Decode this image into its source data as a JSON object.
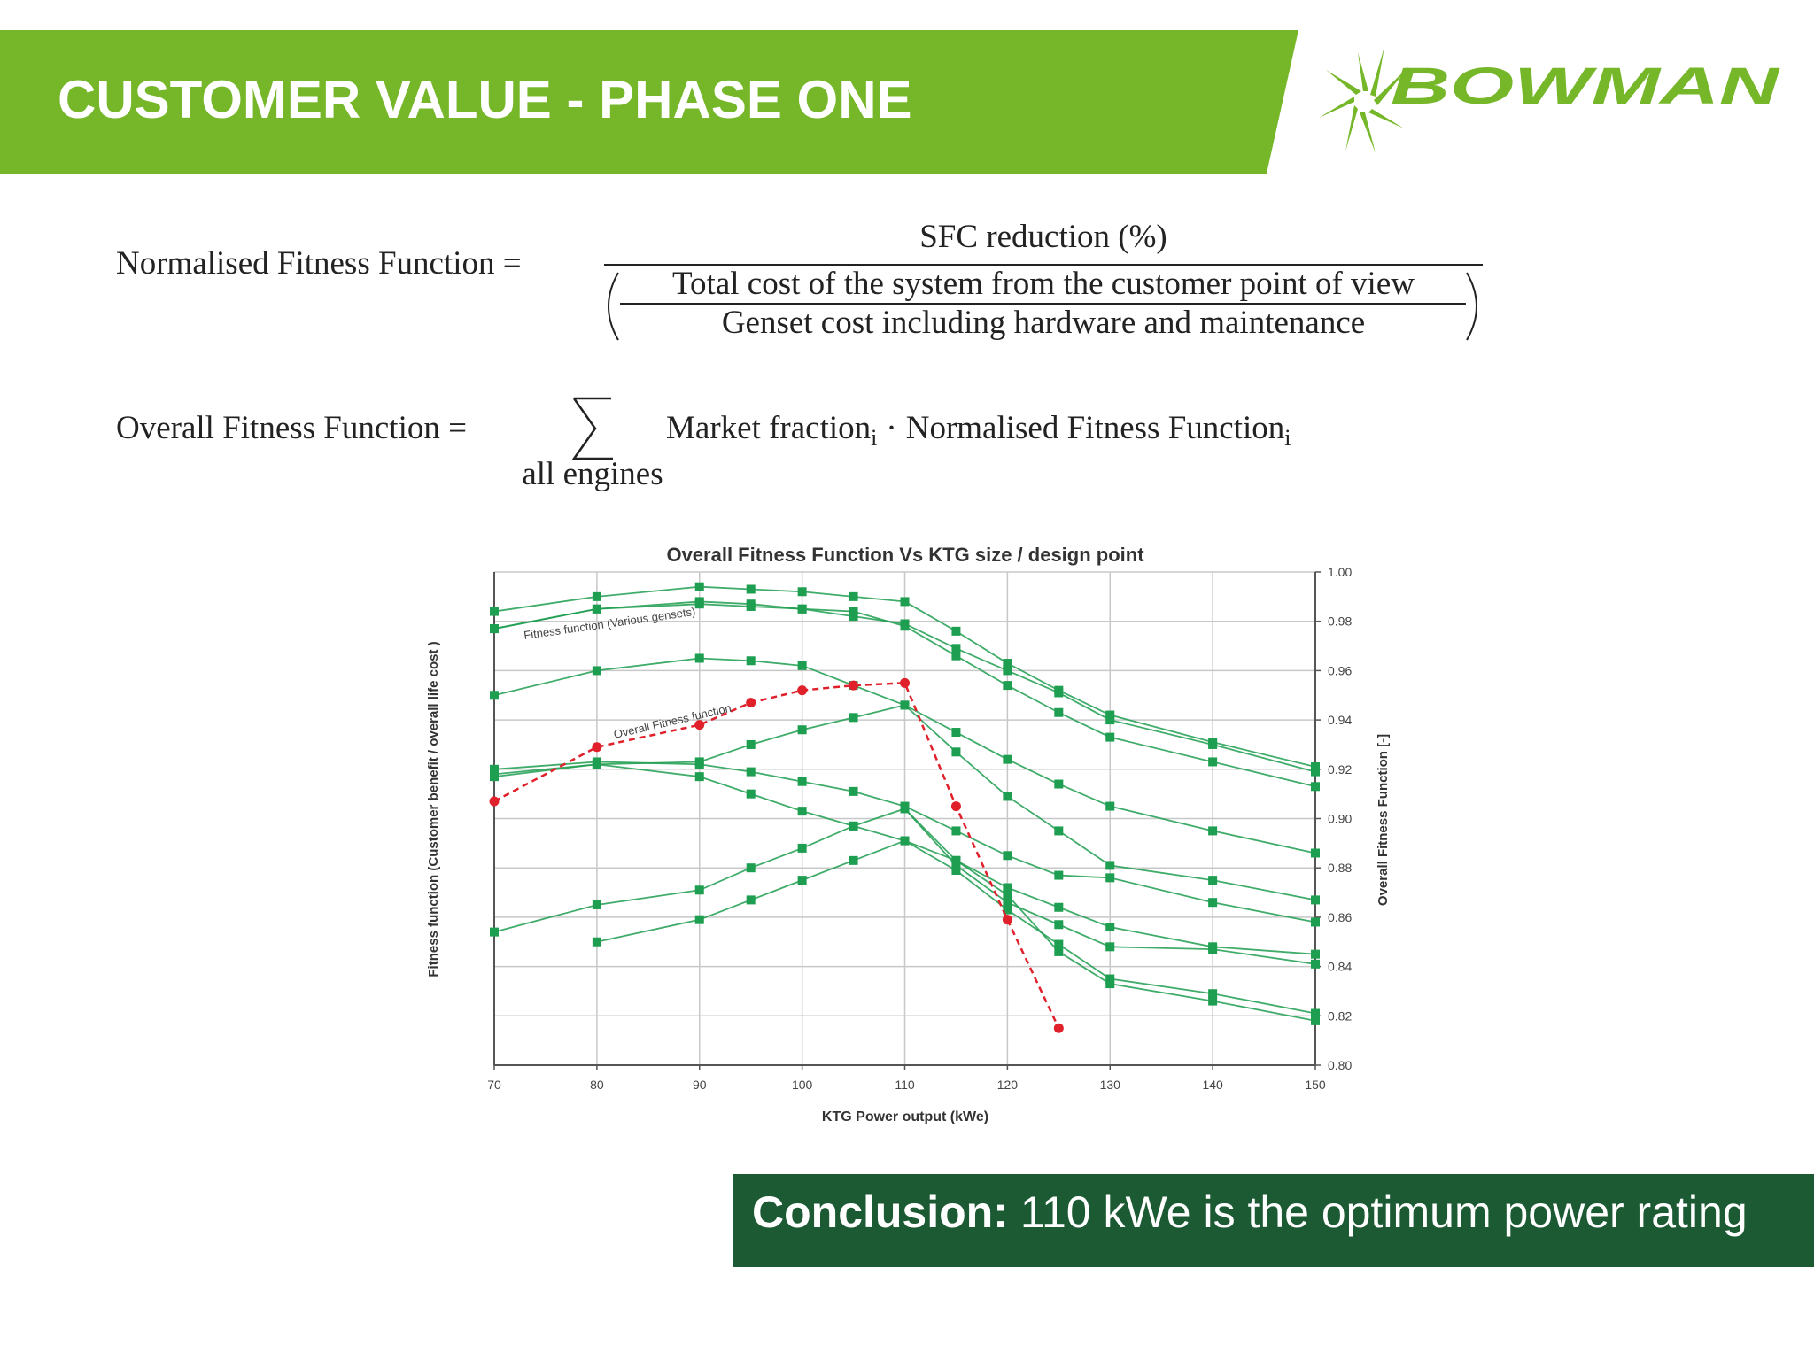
{
  "header": {
    "title": "CUSTOMER VALUE - PHASE ONE",
    "logo": "BOWMAN"
  },
  "formula1": {
    "lhs": "Normalised Fitness Function =",
    "numerator": "SFC reduction (%)",
    "inner_numerator": "Total cost of the system from the customer point of view",
    "inner_denominator": "Genset cost including hardware and maintenance"
  },
  "formula2": {
    "lhs": "Overall Fitness Function =",
    "sum_under": "all engines",
    "term1": "Market fraction",
    "sub1": "i",
    "dot": "·",
    "term2": "Normalised Fitness Function",
    "sub2": "i"
  },
  "chart_data": {
    "type": "line",
    "title": "Overall Fitness Function Vs KTG size / design point",
    "xlabel": "KTG Power output (kWe)",
    "ylabel": "Fitness function (Customer benefit / overall life cost )",
    "y2label": "Overall Fitness Function [-]",
    "x": [
      70,
      80,
      90,
      95,
      100,
      105,
      110,
      115,
      120,
      125,
      130,
      140,
      150
    ],
    "xlim": [
      70,
      150
    ],
    "xticks": [
      70,
      80,
      90,
      100,
      110,
      120,
      130,
      140,
      150
    ],
    "y2lim": [
      0.8,
      1
    ],
    "y2ticks": [
      {
        "value": 0.8,
        "label": "0.80"
      },
      0.82,
      0.84,
      0.86,
      0.88,
      {
        "value": 0.9,
        "label": "0.90"
      },
      0.92,
      0.94,
      0.96,
      0.98,
      {
        "value": 1,
        "label": "1.00"
      }
    ],
    "grid": true,
    "annotations": [
      {
        "text": "Fitness function (Various gensets)"
      },
      {
        "text": "Overall Fitness function"
      }
    ],
    "series": [
      {
        "color": "#1e9e50",
        "marker": "square",
        "axis": "y2",
        "values": [
          0.984,
          0.99,
          0.994,
          0.993,
          0.992,
          0.99,
          0.988,
          0.976,
          0.963,
          0.952,
          0.942,
          0.931,
          0.921
        ]
      },
      {
        "color": "#1e9e50",
        "marker": "square",
        "axis": "y2",
        "values": [
          0.977,
          0.985,
          0.988,
          0.987,
          0.985,
          0.982,
          0.979,
          0.969,
          0.96,
          0.951,
          0.94,
          0.93,
          0.919
        ]
      },
      {
        "color": "#1e9e50",
        "marker": "square",
        "axis": "y2",
        "values": [
          0.977,
          0.985,
          0.987,
          0.986,
          0.985,
          0.984,
          0.978,
          0.966,
          0.954,
          0.943,
          0.933,
          0.923,
          0.913
        ]
      },
      {
        "color": "#1e9e50",
        "marker": "square",
        "axis": "y2",
        "values": [
          0.95,
          0.96,
          0.965,
          0.964,
          0.962,
          0.954,
          0.946,
          0.935,
          0.924,
          0.914,
          0.905,
          0.895,
          0.886
        ]
      },
      {
        "color": "#1e9e50",
        "marker": "square",
        "axis": "y2",
        "values": [
          0.918,
          0.922,
          0.923,
          0.93,
          0.936,
          0.941,
          0.946,
          0.927,
          0.909,
          0.895,
          0.881,
          0.875,
          0.867
        ]
      },
      {
        "color": "#1e9e50",
        "marker": "square",
        "axis": "y2",
        "values": [
          0.92,
          0.923,
          0.922,
          0.919,
          0.915,
          0.911,
          0.905,
          0.895,
          0.885,
          0.877,
          0.876,
          0.866,
          0.858
        ]
      },
      {
        "color": "#1e9e50",
        "marker": "square",
        "axis": "y2",
        "values": [
          0.917,
          0.922,
          0.917,
          0.91,
          0.903,
          0.897,
          0.891,
          0.883,
          0.872,
          0.864,
          0.856,
          0.848,
          0.845
        ]
      },
      {
        "color": "#1e9e50",
        "marker": "square",
        "axis": "y2",
        "values": [
          0.854,
          0.865,
          0.871,
          0.88,
          0.888,
          0.897,
          0.904,
          0.881,
          0.866,
          0.857,
          0.848,
          0.847,
          0.841
        ]
      },
      {
        "color": "#1e9e50",
        "marker": "square",
        "axis": "y2",
        "values": [
          null,
          0.85,
          0.859,
          0.867,
          0.875,
          0.883,
          0.891,
          0.879,
          0.863,
          0.849,
          0.835,
          0.829,
          0.821
        ]
      },
      {
        "color": "#1e9e50",
        "marker": "square",
        "axis": "y2",
        "values": [
          null,
          null,
          null,
          null,
          null,
          null,
          0.904,
          0.883,
          0.869,
          0.846,
          0.833,
          0.826,
          0.818
        ]
      },
      {
        "color": "#e0202a",
        "marker": "circle",
        "dashed": true,
        "axis": "y2",
        "values": [
          0.907,
          0.929,
          0.938,
          0.947,
          0.952,
          0.954,
          0.955,
          0.905,
          0.859,
          0.815,
          null,
          null,
          null
        ]
      }
    ]
  },
  "conclusion": {
    "label": "Conclusion:",
    "text": "110 kWe is the optimum power rating"
  }
}
